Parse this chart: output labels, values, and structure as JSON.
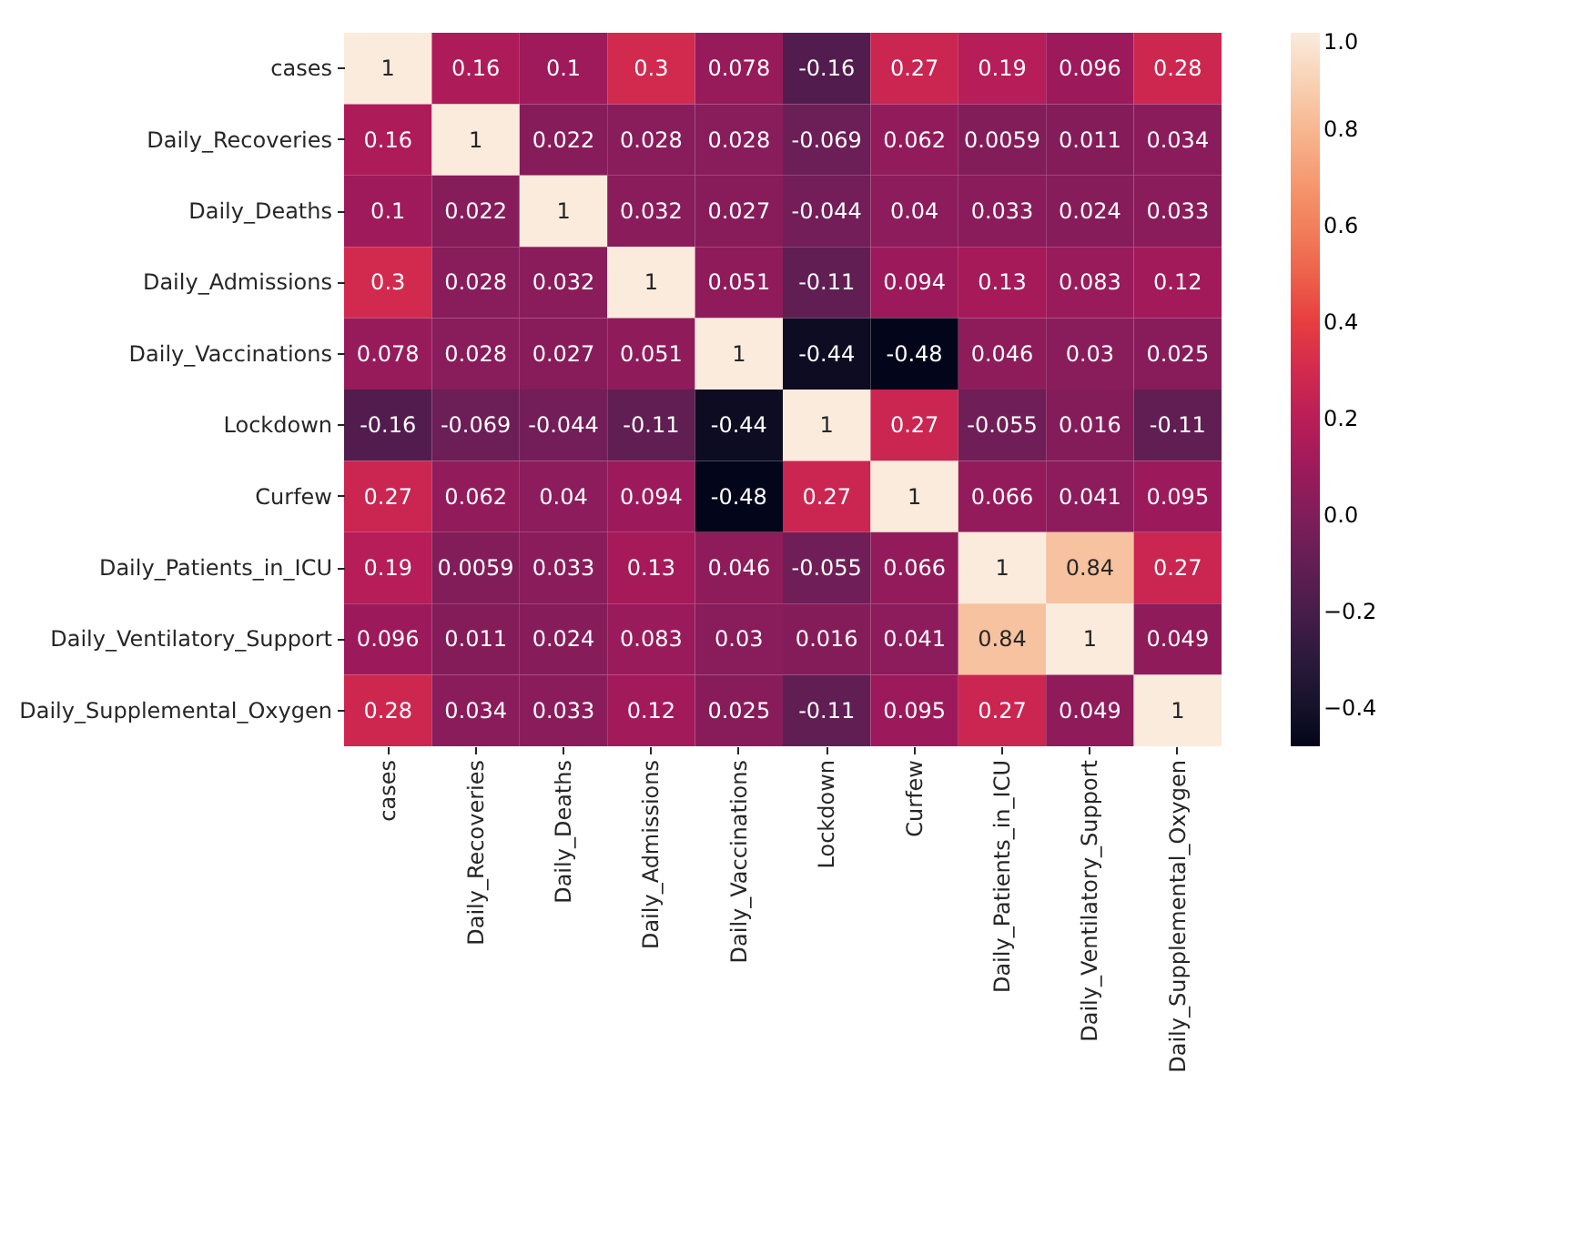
{
  "chart_data": {
    "type": "heatmap",
    "categories": [
      "cases",
      "Daily_Recoveries",
      "Daily_Deaths",
      "Daily_Admissions",
      "Daily_Vaccinations",
      "Lockdown",
      "Curfew",
      "Daily_Patients_in_ICU",
      "Daily_Ventilatory_Support",
      "Daily_Supplemental_Oxygen"
    ],
    "y_categories": [
      "cases",
      "Daily_Recoveries",
      "Daily_Deaths",
      "Daily_Admissions",
      "Daily_Vaccinations",
      "Lockdown",
      "Curfew",
      "Daily_Patients_in_ICU",
      "Daily_Ventilatory_Support",
      "Daily_Supplemental_Oxygen"
    ],
    "cells": [
      [
        1,
        0.16,
        0.1,
        0.3,
        0.078,
        -0.16,
        0.27,
        0.19,
        0.096,
        0.28
      ],
      [
        0.16,
        1,
        0.022,
        0.028,
        0.028,
        -0.069,
        0.062,
        0.0059,
        0.011,
        0.034
      ],
      [
        0.1,
        0.022,
        1,
        0.032,
        0.027,
        -0.044,
        0.04,
        0.033,
        0.024,
        0.033
      ],
      [
        0.3,
        0.028,
        0.032,
        1,
        0.051,
        -0.11,
        0.094,
        0.13,
        0.083,
        0.12
      ],
      [
        0.078,
        0.028,
        0.027,
        0.051,
        1,
        -0.44,
        -0.48,
        0.046,
        0.03,
        0.025
      ],
      [
        -0.16,
        -0.069,
        -0.044,
        -0.11,
        -0.44,
        1,
        0.27,
        -0.055,
        0.016,
        -0.11
      ],
      [
        0.27,
        0.062,
        0.04,
        0.094,
        -0.48,
        0.27,
        1,
        0.066,
        0.041,
        0.095
      ],
      [
        0.19,
        0.0059,
        0.033,
        0.13,
        0.046,
        -0.055,
        0.066,
        1,
        0.84,
        0.27
      ],
      [
        0.096,
        0.011,
        0.024,
        0.083,
        0.03,
        0.016,
        0.041,
        0.84,
        1,
        0.049
      ],
      [
        0.28,
        0.034,
        0.033,
        0.12,
        0.025,
        -0.11,
        0.095,
        0.27,
        0.049,
        1
      ]
    ],
    "data_labels": true,
    "clim": [
      -0.48,
      1
    ],
    "cticks": [
      -0.4,
      -0.2,
      {
        "value": 0,
        "label": "0.0"
      },
      0.2,
      0.4,
      0.6,
      0.8,
      {
        "value": 1,
        "label": "1.0"
      }
    ]
  }
}
